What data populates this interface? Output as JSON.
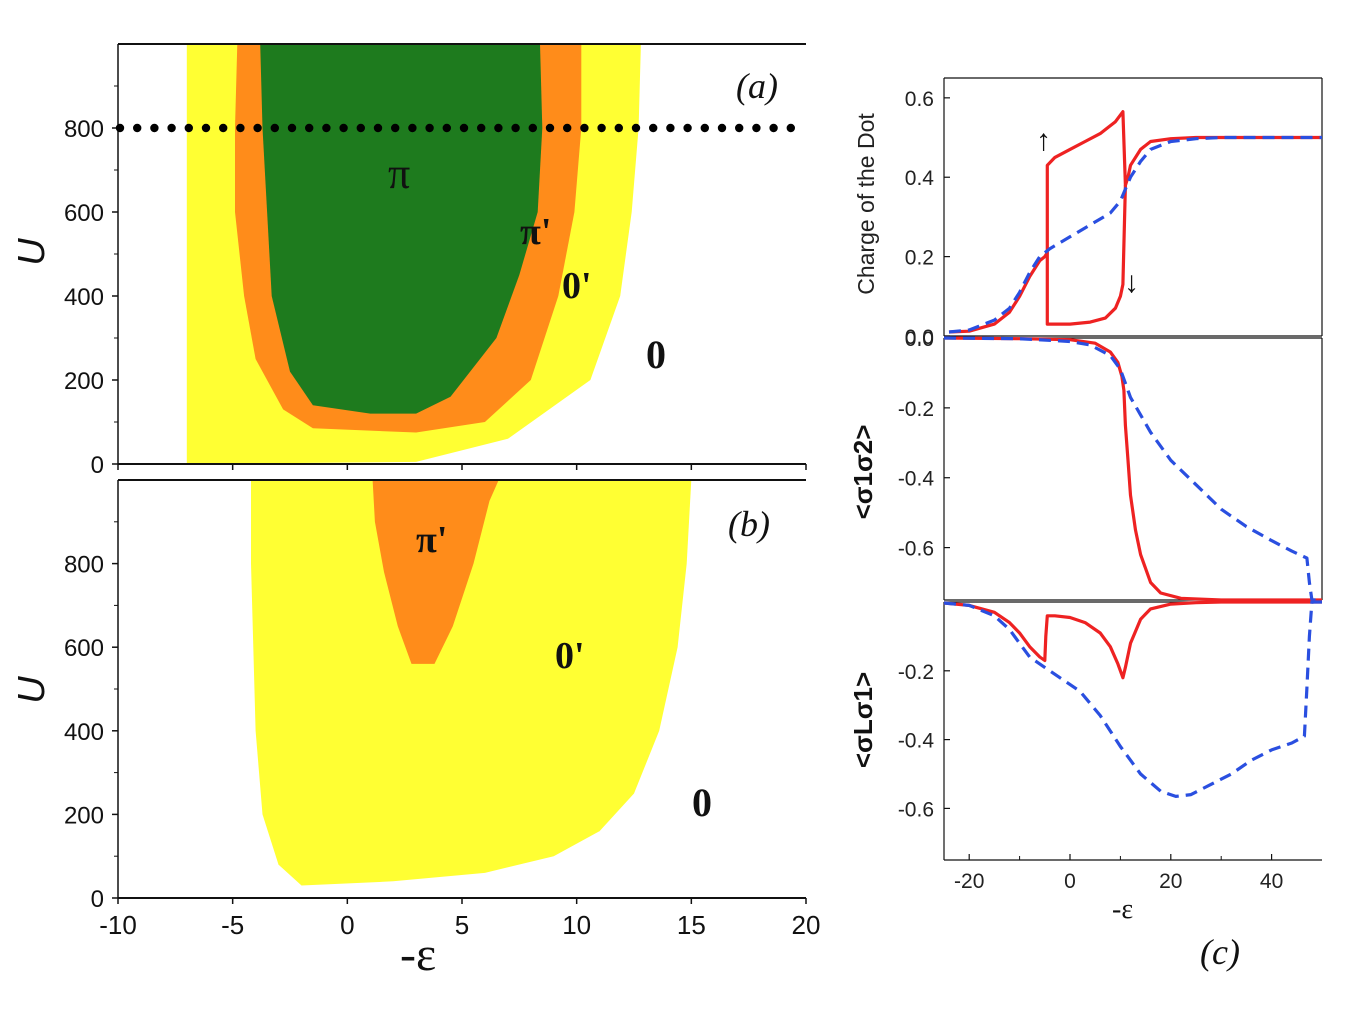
{
  "colors": {
    "green": "#1e7b1e",
    "orange": "#ff8c1a",
    "yellow": "#ffff33",
    "red": "#ee2222",
    "blue": "#2a4fe0"
  },
  "left_xticks": [
    "-10",
    "-5",
    "0",
    "5",
    "10",
    "15",
    "20"
  ],
  "left_yticks": [
    "0",
    "200",
    "400",
    "600",
    "800"
  ],
  "ylabel_u": "U",
  "xlabel_eps": "-ε",
  "panel_a": {
    "tag": "(a)",
    "regions": {
      "pi": "π",
      "pi_prime": "π'",
      "zero_prime": "0'",
      "zero": "0"
    }
  },
  "panel_b": {
    "tag": "(b)",
    "regions": {
      "pi_prime": "π'",
      "zero_prime": "0'",
      "zero": "0"
    }
  },
  "panel_c": {
    "tag": "(c)",
    "xlabel": "-ε",
    "xticks": [
      "-20",
      "0",
      "20",
      "40"
    ],
    "top_ylabel": "Charge of the Dot",
    "top_yticks": [
      "0.0",
      "0.2",
      "0.4",
      "0.6"
    ],
    "mid_ylabel": "<σ1σ2>",
    "mid_yticks": [
      "0.0",
      "-0.2",
      "-0.4",
      "-0.6"
    ],
    "bot_ylabel": "<σLσ1>",
    "bot_yticks": [
      "-0.2",
      "-0.4",
      "-0.6"
    ],
    "arrow_up": "↑",
    "arrow_down": "↓"
  },
  "chart_data": [
    {
      "type": "heatmap",
      "panel": "(a)",
      "xlabel": "-ε",
      "ylabel": "U",
      "xlim": [
        -10,
        20
      ],
      "ylim": [
        0,
        1000
      ],
      "dotted_line_U": 800,
      "regions": [
        {
          "name": "0'",
          "color": "#ffff33",
          "boundary": [
            [
              -7.0,
              0
            ],
            [
              -7.0,
              1000
            ],
            [
              12.8,
              1000
            ],
            [
              12.7,
              800
            ],
            [
              12.4,
              600
            ],
            [
              11.9,
              400
            ],
            [
              10.6,
              200
            ],
            [
              7.0,
              60
            ],
            [
              3.0,
              5
            ],
            [
              -7.0,
              0
            ]
          ]
        },
        {
          "name": "π'",
          "color": "#ff8c1a",
          "boundary": [
            [
              -4.8,
              1000
            ],
            [
              -4.9,
              800
            ],
            [
              -4.9,
              600
            ],
            [
              -4.5,
              400
            ],
            [
              -4.0,
              250
            ],
            [
              -2.8,
              130
            ],
            [
              -1.5,
              85
            ],
            [
              3.0,
              75
            ],
            [
              6.0,
              100
            ],
            [
              8.0,
              200
            ],
            [
              9.2,
              400
            ],
            [
              9.9,
              600
            ],
            [
              10.2,
              800
            ],
            [
              10.2,
              1000
            ],
            [
              -4.8,
              1000
            ]
          ]
        },
        {
          "name": "π",
          "color": "#1e7b1e",
          "boundary": [
            [
              -3.8,
              1000
            ],
            [
              -3.7,
              800
            ],
            [
              -3.5,
              600
            ],
            [
              -3.3,
              400
            ],
            [
              -2.5,
              220
            ],
            [
              -1.5,
              140
            ],
            [
              1.0,
              120
            ],
            [
              3.0,
              120
            ],
            [
              4.5,
              160
            ],
            [
              6.5,
              300
            ],
            [
              7.5,
              450
            ],
            [
              8.3,
              600
            ],
            [
              8.5,
              800
            ],
            [
              8.4,
              1000
            ],
            [
              -3.8,
              1000
            ]
          ]
        }
      ]
    },
    {
      "type": "heatmap",
      "panel": "(b)",
      "xlabel": "-ε",
      "ylabel": "U",
      "xlim": [
        -10,
        20
      ],
      "ylim": [
        0,
        1000
      ],
      "regions": [
        {
          "name": "0'",
          "color": "#ffff33",
          "boundary": [
            [
              -4.2,
              1000
            ],
            [
              -4.2,
              800
            ],
            [
              -4.1,
              600
            ],
            [
              -4.0,
              400
            ],
            [
              -3.7,
              200
            ],
            [
              -3.0,
              80
            ],
            [
              -2.0,
              30
            ],
            [
              2.0,
              40
            ],
            [
              6.0,
              60
            ],
            [
              9.0,
              100
            ],
            [
              11.0,
              160
            ],
            [
              12.5,
              250
            ],
            [
              13.6,
              400
            ],
            [
              14.4,
              600
            ],
            [
              14.8,
              800
            ],
            [
              15.0,
              1000
            ]
          ]
        },
        {
          "name": "π'",
          "color": "#ff8c1a",
          "boundary": [
            [
              1.1,
              1000
            ],
            [
              1.2,
              900
            ],
            [
              1.6,
              780
            ],
            [
              2.2,
              650
            ],
            [
              2.8,
              560
            ],
            [
              3.8,
              560
            ],
            [
              4.6,
              650
            ],
            [
              5.5,
              800
            ],
            [
              6.2,
              950
            ],
            [
              6.6,
              1000
            ]
          ]
        }
      ]
    },
    {
      "type": "line",
      "panel": "(c) top",
      "ylabel": "Charge of the Dot",
      "xlim": [
        -25,
        50
      ],
      "ylim": [
        0,
        0.65
      ],
      "series": [
        {
          "name": "sweep up",
          "color": "#ee2222",
          "style": "solid",
          "x": [
            -24,
            -20,
            -15,
            -12,
            -10,
            -8,
            -6,
            -5,
            -4.5,
            -4.5,
            -3,
            0,
            3,
            6,
            9,
            10.5,
            11,
            11.5,
            12,
            14,
            16,
            20,
            25,
            30,
            40,
            50
          ],
          "y": [
            0.01,
            0.012,
            0.03,
            0.06,
            0.1,
            0.15,
            0.19,
            0.2,
            0.21,
            0.43,
            0.45,
            0.47,
            0.49,
            0.51,
            0.54,
            0.565,
            0.38,
            0.4,
            0.43,
            0.47,
            0.49,
            0.497,
            0.5,
            0.5,
            0.5,
            0.5
          ]
        },
        {
          "name": "sweep down",
          "color": "#ee2222",
          "style": "solid",
          "x": [
            -4.5,
            -4.5,
            -3,
            0,
            4,
            7,
            9,
            10,
            10.5,
            11
          ],
          "y": [
            0.21,
            0.03,
            0.03,
            0.03,
            0.035,
            0.045,
            0.07,
            0.1,
            0.13,
            0.38
          ]
        },
        {
          "name": "dashed",
          "color": "#2a4fe0",
          "style": "dashed",
          "x": [
            -24,
            -20,
            -15,
            -12,
            -10,
            -8,
            -6,
            -4,
            0,
            4,
            8,
            10,
            11,
            12,
            14,
            16,
            20,
            25,
            30,
            40,
            50
          ],
          "y": [
            0.01,
            0.015,
            0.04,
            0.07,
            0.11,
            0.16,
            0.2,
            0.22,
            0.25,
            0.28,
            0.31,
            0.34,
            0.37,
            0.4,
            0.44,
            0.47,
            0.49,
            0.497,
            0.5,
            0.5,
            0.5
          ]
        }
      ]
    },
    {
      "type": "line",
      "panel": "(c) middle",
      "ylabel": "<σ1σ2>",
      "xlim": [
        -25,
        50
      ],
      "ylim": [
        -0.75,
        0
      ],
      "series": [
        {
          "name": "solid",
          "color": "#ee2222",
          "style": "solid",
          "x": [
            -25,
            -10,
            0,
            5,
            8,
            9.5,
            10.3,
            10.7,
            11,
            11.5,
            12,
            13,
            14,
            16,
            18,
            22,
            30,
            50
          ],
          "y": [
            0,
            -0.002,
            -0.005,
            -0.015,
            -0.04,
            -0.07,
            -0.11,
            -0.15,
            -0.25,
            -0.35,
            -0.45,
            -0.55,
            -0.62,
            -0.7,
            -0.73,
            -0.745,
            -0.75,
            -0.75
          ]
        },
        {
          "name": "dashed",
          "color": "#2a4fe0",
          "style": "dashed",
          "x": [
            -25,
            -10,
            0,
            4,
            8,
            10,
            12,
            14,
            16,
            20,
            25,
            30,
            35,
            40,
            44,
            47,
            47.5,
            48,
            50
          ],
          "y": [
            0,
            -0.002,
            -0.01,
            -0.02,
            -0.05,
            -0.09,
            -0.17,
            -0.22,
            -0.27,
            -0.35,
            -0.42,
            -0.49,
            -0.54,
            -0.58,
            -0.61,
            -0.63,
            -0.7,
            -0.75,
            -0.75
          ]
        }
      ]
    },
    {
      "type": "line",
      "panel": "(c) bottom",
      "ylabel": "<σLσ1>",
      "xlabel": "-ε",
      "xlim": [
        -25,
        50
      ],
      "ylim": [
        -0.75,
        0
      ],
      "series": [
        {
          "name": "solid",
          "color": "#ee2222",
          "style": "solid",
          "x": [
            -25,
            -20,
            -15,
            -12,
            -10,
            -8,
            -6,
            -5,
            -4.8,
            -4.5,
            -3,
            0,
            3,
            6,
            8,
            9.5,
            10.5,
            11,
            12,
            14,
            16,
            20,
            25,
            30,
            50
          ],
          "y": [
            -0.003,
            -0.01,
            -0.03,
            -0.06,
            -0.09,
            -0.13,
            -0.16,
            -0.17,
            -0.1,
            -0.04,
            -0.04,
            -0.045,
            -0.06,
            -0.09,
            -0.13,
            -0.18,
            -0.22,
            -0.19,
            -0.12,
            -0.05,
            -0.02,
            -0.006,
            -0.002,
            0,
            0
          ]
        },
        {
          "name": "dashed",
          "color": "#2a4fe0",
          "style": "dashed",
          "x": [
            -25,
            -20,
            -15,
            -12,
            -10,
            -8,
            -5,
            -2,
            2,
            6,
            10,
            14,
            18,
            21,
            24,
            28,
            32,
            36,
            40,
            44,
            46.5,
            47,
            47.5,
            48,
            50
          ],
          "y": [
            -0.003,
            -0.01,
            -0.04,
            -0.08,
            -0.12,
            -0.16,
            -0.19,
            -0.22,
            -0.26,
            -0.33,
            -0.42,
            -0.5,
            -0.55,
            -0.565,
            -0.56,
            -0.53,
            -0.5,
            -0.46,
            -0.43,
            -0.41,
            -0.39,
            -0.25,
            -0.1,
            0,
            0
          ]
        }
      ]
    }
  ]
}
